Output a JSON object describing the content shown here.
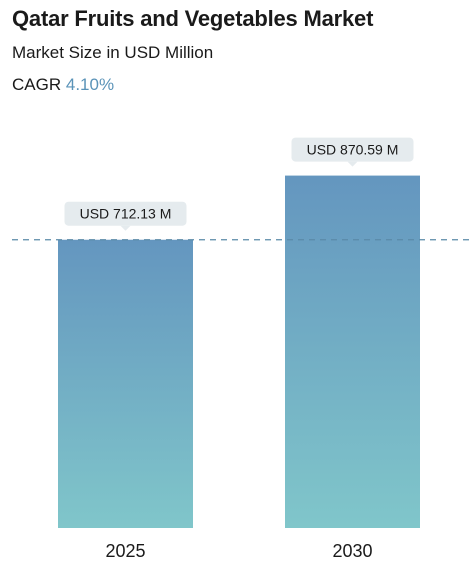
{
  "header": {
    "title": "Qatar Fruits and Vegetables Market",
    "subtitle": "Market Size in USD Million",
    "cagr_label": "CAGR",
    "cagr_value": "4.10%"
  },
  "colors": {
    "bar_top": "#6496bf",
    "bar_bottom": "#80c6ca",
    "callout_bg": "#e5ebee",
    "dashed_line": "#5a8aa8",
    "cagr_accent": "#5a93b8"
  },
  "chart_data": {
    "type": "bar",
    "categories": [
      "2025",
      "2030"
    ],
    "values": [
      712.13,
      870.59
    ],
    "data_labels": [
      "USD 712.13 M",
      "USD 870.59 M"
    ],
    "reference_line": 712.13,
    "title": "Qatar Fruits and Vegetables Market",
    "ylabel": "",
    "xlabel": "",
    "grid": false
  }
}
